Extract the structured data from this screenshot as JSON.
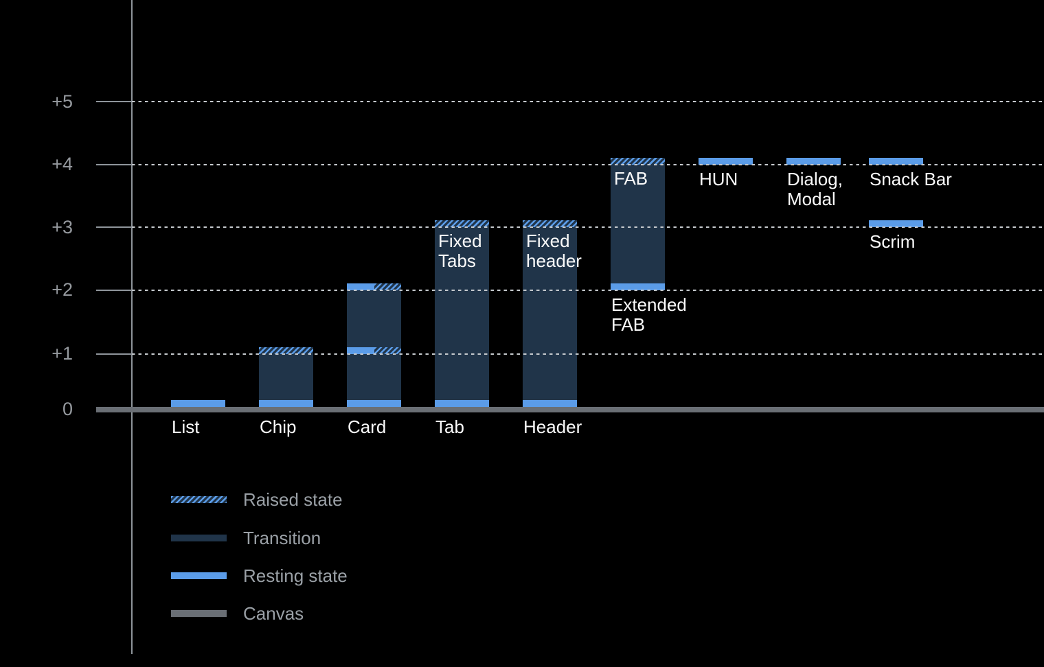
{
  "title": "Elevation diagram of Material components (dark canvas)",
  "colors": {
    "background": "#000000",
    "resting_blue": "#5B9CE8",
    "transition_navy": "#203449",
    "canvas_gray": "#6A6F75",
    "axis_gray": "#8F959B",
    "gridline_dot_gray": "#C6CACE",
    "tick_label_gray": "#95999E",
    "legend_text_gray": "#9AA0A6",
    "label_white": "#FAFAFA"
  },
  "chart_data": {
    "type": "bar",
    "title": "",
    "xlabel": "",
    "ylabel": "",
    "ylim": [
      0,
      5
    ],
    "grid": "dotted horizontal lines at +1 through +5, solid gray canvas baseline at 0",
    "legend_position": "bottom-left",
    "y_axis": {
      "ticks": [
        {
          "value": 5,
          "label": "+5"
        },
        {
          "value": 4,
          "label": "+4"
        },
        {
          "value": 3,
          "label": "+3"
        },
        {
          "value": 2,
          "label": "+2"
        },
        {
          "value": 1,
          "label": "+1"
        },
        {
          "value": 0,
          "label": "0"
        }
      ]
    },
    "columns": [
      {
        "name": "List",
        "axis_label": "List",
        "bands": [
          {
            "elevation": 0,
            "style": "resting"
          }
        ]
      },
      {
        "name": "Chip",
        "axis_label": "Chip",
        "body": {
          "from": 0,
          "to": 1
        },
        "bands": [
          {
            "elevation": 1,
            "style": "raised"
          },
          {
            "elevation": 0,
            "style": "resting"
          }
        ]
      },
      {
        "name": "Card",
        "axis_label": "Card",
        "body": {
          "from": 0,
          "to": 2
        },
        "bands": [
          {
            "elevation": 2,
            "style": "split"
          },
          {
            "elevation": 1,
            "style": "split"
          },
          {
            "elevation": 0,
            "style": "resting"
          }
        ]
      },
      {
        "name": "Tab",
        "axis_label": "Tab",
        "inner_label": "Fixed\nTabs",
        "body": {
          "from": 0,
          "to": 3
        },
        "bands": [
          {
            "elevation": 3,
            "style": "raised"
          },
          {
            "elevation": 0,
            "style": "resting"
          }
        ]
      },
      {
        "name": "Header",
        "axis_label": "Header",
        "inner_label": "Fixed\nheader",
        "body": {
          "from": 0,
          "to": 3
        },
        "bands": [
          {
            "elevation": 3,
            "style": "raised"
          },
          {
            "elevation": 0,
            "style": "resting"
          }
        ]
      },
      {
        "name": "FAB",
        "inner_label": "FAB",
        "below_label": "Extended\nFAB",
        "body": {
          "from": 2,
          "to": 4
        },
        "bands": [
          {
            "elevation": 4,
            "style": "raised"
          },
          {
            "elevation": 2,
            "style": "resting"
          }
        ]
      },
      {
        "name": "HUN",
        "bands": [
          {
            "elevation": 4,
            "style": "resting",
            "label": "HUN"
          }
        ]
      },
      {
        "name": "Dialog, Modal",
        "bands": [
          {
            "elevation": 4,
            "style": "resting",
            "label": "Dialog,\nModal"
          }
        ]
      },
      {
        "name": "Snack Bar / Scrim",
        "bands": [
          {
            "elevation": 4,
            "style": "resting",
            "label": "Snack Bar"
          },
          {
            "elevation": 3,
            "style": "resting",
            "label": "Scrim"
          }
        ]
      }
    ]
  },
  "legend": {
    "items": [
      {
        "label": "Raised state",
        "style": "raised"
      },
      {
        "label": "Transition",
        "style": "transition"
      },
      {
        "label": "Resting state",
        "style": "resting"
      },
      {
        "label": "Canvas",
        "style": "canvas"
      }
    ]
  }
}
